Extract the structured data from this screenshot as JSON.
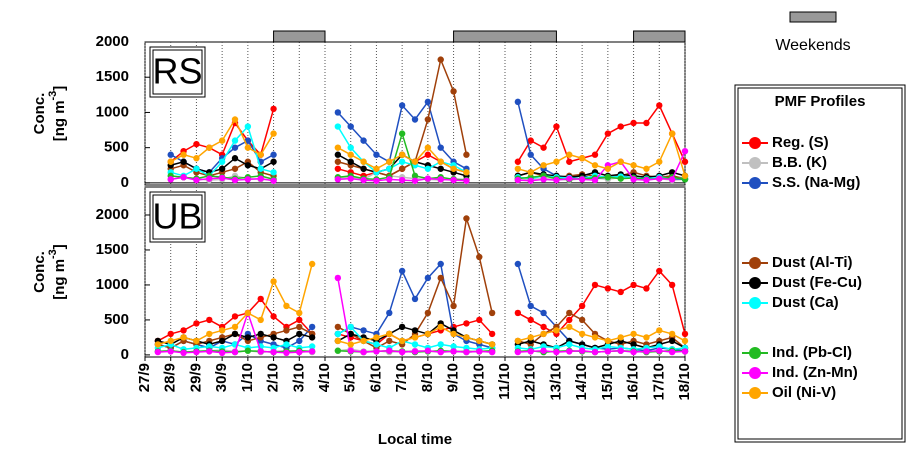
{
  "chart_data": [
    {
      "type": "line",
      "panel_label": "RS",
      "ylabel": {
        "line1": "Conc.",
        "line2": "[ng m",
        "sup": "-3",
        "end": "]"
      },
      "xlim": [
        0,
        21
      ],
      "ylim": [
        -30,
        2000
      ],
      "yticks": [
        0,
        500,
        1000,
        1500,
        2000
      ],
      "zero_line": true,
      "grid": true,
      "weekends": [
        [
          5,
          7
        ],
        [
          12,
          16
        ],
        [
          19,
          21
        ]
      ],
      "weekends_label": "Weekends",
      "weekends_color": "#999999",
      "legend_title": "PMF Profiles",
      "x": [
        0,
        0.5,
        1,
        1.5,
        2,
        2.5,
        3,
        3.5,
        4,
        4.5,
        5,
        5.5,
        6,
        6.5,
        7,
        7.5,
        8,
        8.5,
        9,
        9.5,
        10,
        10.5,
        11,
        11.5,
        12,
        12.5,
        13,
        13.5,
        14,
        14.5,
        15,
        15.5,
        16,
        16.5,
        17,
        17.5,
        18,
        18.5,
        19,
        19.5,
        20,
        20.5,
        21
      ],
      "series": [
        {
          "name": "Reg. (S)",
          "color": "#ff0000",
          "values": [
            null,
            null,
            300,
            450,
            550,
            500,
            400,
            850,
            600,
            400,
            1050,
            null,
            null,
            null,
            null,
            200,
            150,
            100,
            150,
            100,
            200,
            300,
            400,
            300,
            200,
            150,
            null,
            null,
            null,
            300,
            600,
            500,
            800,
            300,
            350,
            400,
            700,
            800,
            850,
            850,
            1100,
            700,
            300
          ]
        },
        {
          "name": "B.B. (K)",
          "color": "#c0c0c0",
          "values": [
            null,
            null,
            50,
            80,
            60,
            40,
            50,
            100,
            60,
            50,
            40,
            null,
            null,
            null,
            null,
            60,
            80,
            50,
            150,
            100,
            80,
            60,
            50,
            40,
            60,
            50,
            null,
            null,
            null,
            40,
            50,
            60,
            50,
            40,
            60,
            70,
            50,
            80,
            60,
            50,
            60,
            40,
            50
          ]
        },
        {
          "name": "S.S. (Na-Mg)",
          "color": "#1f4fc0",
          "values": [
            null,
            null,
            400,
            300,
            200,
            150,
            350,
            500,
            600,
            300,
            400,
            null,
            null,
            null,
            null,
            1000,
            800,
            600,
            400,
            300,
            1100,
            900,
            1150,
            500,
            300,
            200,
            null,
            null,
            null,
            1150,
            400,
            200,
            100,
            80,
            100,
            60,
            80,
            100,
            70,
            60,
            80,
            60,
            50
          ]
        },
        {
          "name": "Dust (Al-Ti)",
          "color": "#a0400a",
          "values": [
            null,
            null,
            200,
            250,
            150,
            100,
            150,
            200,
            300,
            150,
            100,
            null,
            null,
            null,
            null,
            300,
            250,
            200,
            150,
            100,
            200,
            300,
            900,
            1750,
            1300,
            400,
            null,
            null,
            null,
            100,
            150,
            100,
            80,
            100,
            120,
            100,
            80,
            100,
            150,
            100,
            80,
            100,
            60
          ]
        },
        {
          "name": "Dust (Fe-Cu)",
          "color": "#000000",
          "values": [
            null,
            null,
            250,
            300,
            200,
            150,
            200,
            350,
            250,
            200,
            300,
            null,
            null,
            null,
            null,
            400,
            300,
            200,
            150,
            200,
            400,
            300,
            250,
            200,
            150,
            100,
            null,
            null,
            null,
            100,
            150,
            120,
            100,
            80,
            100,
            150,
            100,
            120,
            100,
            80,
            100,
            150,
            100
          ]
        },
        {
          "name": "Dust (Ca)",
          "color": "#00ffff",
          "values": [
            null,
            null,
            150,
            100,
            200,
            100,
            300,
            600,
            800,
            200,
            150,
            null,
            null,
            null,
            null,
            800,
            500,
            300,
            150,
            200,
            300,
            250,
            200,
            300,
            250,
            150,
            null,
            null,
            null,
            80,
            60,
            100,
            80,
            70,
            60,
            100,
            80,
            90,
            70,
            60,
            80,
            70,
            60
          ]
        },
        {
          "name": "Ind. (Pb-Cl)",
          "color": "#22bb22",
          "values": [
            null,
            null,
            100,
            80,
            60,
            100,
            80,
            60,
            80,
            100,
            50,
            null,
            null,
            null,
            null,
            80,
            100,
            60,
            50,
            80,
            700,
            100,
            60,
            80,
            50,
            40,
            null,
            null,
            null,
            60,
            80,
            100,
            60,
            50,
            60,
            70,
            80,
            60,
            70,
            50,
            60,
            80,
            50
          ]
        },
        {
          "name": "Ind. (Zn-Mn)",
          "color": "#ff00ff",
          "values": [
            null,
            null,
            50,
            80,
            40,
            60,
            70,
            40,
            50,
            60,
            30,
            null,
            null,
            null,
            null,
            50,
            60,
            40,
            30,
            50,
            40,
            30,
            60,
            50,
            40,
            30,
            null,
            null,
            null,
            40,
            30,
            50,
            40,
            60,
            50,
            40,
            250,
            300,
            50,
            40,
            60,
            50,
            450
          ]
        },
        {
          "name": "Oil (Ni-V)",
          "color": "#ffa500",
          "values": [
            null,
            null,
            300,
            400,
            350,
            500,
            600,
            900,
            500,
            400,
            700,
            null,
            null,
            null,
            null,
            500,
            400,
            300,
            200,
            300,
            400,
            300,
            500,
            300,
            200,
            150,
            null,
            null,
            null,
            200,
            150,
            250,
            300,
            400,
            350,
            250,
            200,
            300,
            250,
            200,
            300,
            700,
            100
          ]
        }
      ]
    },
    {
      "type": "line",
      "panel_label": "UB",
      "ylabel": {
        "line1": "Conc.",
        "line2": "[ng m",
        "sup": "-3",
        "end": "]"
      },
      "xlabel": "Local time",
      "xlim": [
        0,
        21
      ],
      "ylim": [
        -30,
        2400
      ],
      "yticks": [
        0,
        500,
        1000,
        1500,
        2000
      ],
      "grid": true,
      "xticks": [
        {
          "value": 0,
          "label": "27/9"
        },
        {
          "value": 1,
          "label": "28/9"
        },
        {
          "value": 2,
          "label": "29/9"
        },
        {
          "value": 3,
          "label": "30/9"
        },
        {
          "value": 4,
          "label": "1/10"
        },
        {
          "value": 5,
          "label": "2/10"
        },
        {
          "value": 6,
          "label": "3/10"
        },
        {
          "value": 7,
          "label": "4/10"
        },
        {
          "value": 8,
          "label": "5/10"
        },
        {
          "value": 9,
          "label": "6/10"
        },
        {
          "value": 10,
          "label": "7/10"
        },
        {
          "value": 11,
          "label": "8/10"
        },
        {
          "value": 12,
          "label": "9/10"
        },
        {
          "value": 13,
          "label": "10/10"
        },
        {
          "value": 14,
          "label": "11/10"
        },
        {
          "value": 15,
          "label": "12/10"
        },
        {
          "value": 16,
          "label": "13/10"
        },
        {
          "value": 17,
          "label": "14/10"
        },
        {
          "value": 18,
          "label": "15/10"
        },
        {
          "value": 19,
          "label": "16/10"
        },
        {
          "value": 20,
          "label": "17/10"
        },
        {
          "value": 21,
          "label": "18/10"
        }
      ],
      "x": [
        0,
        0.5,
        1,
        1.5,
        2,
        2.5,
        3,
        3.5,
        4,
        4.5,
        5,
        5.5,
        6,
        6.5,
        7,
        7.5,
        8,
        8.5,
        9,
        9.5,
        10,
        10.5,
        11,
        11.5,
        12,
        12.5,
        13,
        13.5,
        14,
        14.5,
        15,
        15.5,
        16,
        16.5,
        17,
        17.5,
        18,
        18.5,
        19,
        19.5,
        20,
        20.5,
        21
      ],
      "series": [
        {
          "color": "#ff0000",
          "values": [
            null,
            200,
            300,
            350,
            450,
            500,
            400,
            550,
            600,
            800,
            550,
            400,
            500,
            300,
            null,
            300,
            250,
            200,
            150,
            300,
            200,
            250,
            300,
            350,
            400,
            450,
            500,
            300,
            null,
            600,
            500,
            400,
            300,
            500,
            700,
            1000,
            950,
            900,
            1000,
            950,
            1200,
            1000,
            300
          ]
        },
        {
          "color": "#c0c0c0",
          "values": [
            null,
            50,
            60,
            40,
            50,
            60,
            70,
            50,
            60,
            40,
            50,
            60,
            50,
            40,
            null,
            60,
            80,
            50,
            60,
            40,
            50,
            60,
            50,
            40,
            50,
            60,
            50,
            40,
            null,
            50,
            60,
            40,
            50,
            60,
            50,
            40,
            50,
            60,
            50,
            40,
            50,
            60,
            50
          ]
        },
        {
          "color": "#1f4fc0",
          "values": [
            null,
            150,
            100,
            200,
            150,
            100,
            200,
            150,
            300,
            200,
            150,
            100,
            200,
            400,
            null,
            300,
            400,
            350,
            300,
            600,
            1200,
            800,
            1100,
            1300,
            300,
            200,
            150,
            100,
            null,
            1300,
            700,
            600,
            400,
            200,
            150,
            100,
            80,
            100,
            80,
            60,
            100,
            80,
            60
          ]
        },
        {
          "color": "#a0400a",
          "values": [
            null,
            150,
            100,
            200,
            150,
            200,
            250,
            300,
            200,
            250,
            300,
            350,
            400,
            300,
            null,
            400,
            300,
            200,
            100,
            200,
            150,
            300,
            600,
            1100,
            700,
            1950,
            1400,
            600,
            null,
            200,
            150,
            300,
            400,
            600,
            500,
            300,
            200,
            150,
            200,
            150,
            200,
            250,
            100
          ]
        },
        {
          "color": "#000000",
          "values": [
            null,
            200,
            150,
            250,
            200,
            150,
            200,
            300,
            250,
            300,
            250,
            200,
            300,
            250,
            null,
            200,
            300,
            250,
            200,
            300,
            400,
            350,
            300,
            450,
            350,
            250,
            200,
            150,
            null,
            150,
            200,
            150,
            100,
            200,
            150,
            100,
            150,
            200,
            150,
            100,
            150,
            200,
            100
          ]
        },
        {
          "color": "#00ffff",
          "values": [
            null,
            100,
            150,
            80,
            100,
            120,
            100,
            150,
            100,
            120,
            100,
            150,
            100,
            120,
            null,
            300,
            400,
            200,
            150,
            100,
            200,
            150,
            100,
            150,
            120,
            100,
            80,
            100,
            null,
            100,
            80,
            120,
            100,
            150,
            100,
            80,
            120,
            100,
            80,
            100,
            120,
            80,
            100
          ]
        },
        {
          "color": "#22bb22",
          "values": [
            null,
            50,
            60,
            40,
            50,
            60,
            50,
            40,
            60,
            50,
            40,
            50,
            60,
            50,
            null,
            60,
            50,
            40,
            50,
            60,
            50,
            40,
            50,
            60,
            50,
            40,
            50,
            60,
            null,
            50,
            60,
            40,
            50,
            60,
            50,
            40,
            50,
            60,
            50,
            40,
            50,
            60,
            50
          ]
        },
        {
          "color": "#ff00ff",
          "values": [
            null,
            40,
            50,
            30,
            40,
            50,
            30,
            40,
            600,
            50,
            40,
            30,
            40,
            50,
            null,
            1100,
            60,
            40,
            50,
            60,
            40,
            50,
            60,
            40,
            50,
            40,
            50,
            40,
            null,
            40,
            50,
            60,
            40,
            50,
            60,
            40,
            50,
            60,
            40,
            50,
            60,
            40,
            50
          ]
        },
        {
          "color": "#ffa500",
          "values": [
            null,
            150,
            200,
            250,
            200,
            300,
            350,
            400,
            600,
            500,
            1050,
            700,
            600,
            1300,
            null,
            200,
            150,
            200,
            250,
            300,
            200,
            250,
            300,
            400,
            300,
            250,
            200,
            150,
            null,
            200,
            250,
            300,
            350,
            400,
            300,
            250,
            200,
            250,
            300,
            250,
            350,
            300,
            200
          ]
        }
      ]
    }
  ]
}
